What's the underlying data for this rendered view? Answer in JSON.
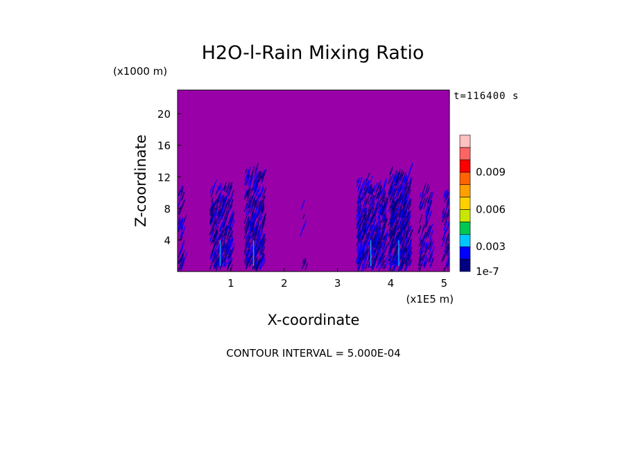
{
  "chart_data": {
    "type": "heatmap",
    "title": "H2O-l-Rain Mixing Ratio",
    "xlabel": "X-coordinate",
    "ylabel": "Z-coordinate",
    "x_unit": "(x1E5 m)",
    "y_unit": "(x1000 m)",
    "time_label": "t=116400 s",
    "footer": "CONTOUR INTERVAL = 5.000E-04",
    "xlim": [
      0,
      5.1
    ],
    "ylim": [
      0,
      23
    ],
    "x_ticks": [
      "1",
      "2",
      "3",
      "4",
      "5"
    ],
    "y_ticks": [
      "4",
      "8",
      "12",
      "16",
      "20"
    ],
    "background_color": "#9a00a8",
    "colorbar": {
      "levels": [
        "1e-7",
        "",
        "0.003",
        "",
        "",
        "0.006",
        "",
        "",
        "0.009",
        "",
        ""
      ],
      "labels": [
        "1e-7",
        "0.003",
        "0.006",
        "0.009"
      ],
      "colors": [
        "#000080",
        "#0000ff",
        "#00c8ff",
        "#00c850",
        "#c8e600",
        "#ffd000",
        "#ffa000",
        "#ff6400",
        "#ff0000",
        "#ff6464",
        "#ffc0c0"
      ]
    },
    "rain_regions": [
      {
        "x_range": [
          0.0,
          0.12
        ],
        "z_top": 10.5,
        "intensity": "light"
      },
      {
        "x_range": [
          0.6,
          1.0
        ],
        "z_top": 10.5,
        "intensity": "moderate"
      },
      {
        "x_range": [
          1.25,
          1.6
        ],
        "z_top": 12.5,
        "intensity": "moderate"
      },
      {
        "x_range": [
          2.3,
          2.4
        ],
        "z_top": 8,
        "intensity": "trace"
      },
      {
        "x_range": [
          3.35,
          3.9
        ],
        "z_top": 11.5,
        "intensity": "moderate"
      },
      {
        "x_range": [
          3.95,
          4.35
        ],
        "z_top": 12.5,
        "intensity": "strong"
      },
      {
        "x_range": [
          4.5,
          4.75
        ],
        "z_top": 10,
        "intensity": "light"
      },
      {
        "x_range": [
          4.95,
          5.1
        ],
        "z_top": 10,
        "intensity": "light"
      }
    ]
  }
}
